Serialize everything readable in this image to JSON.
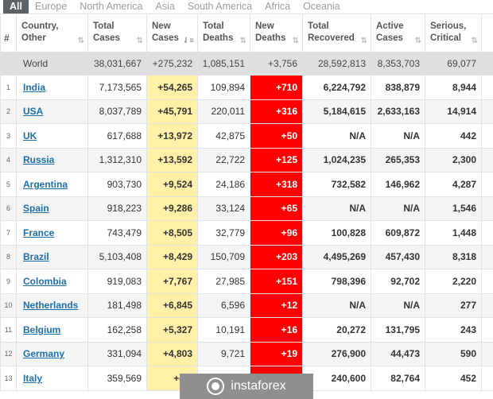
{
  "tabs": [
    "All",
    "Europe",
    "North America",
    "Asia",
    "South America",
    "Africa",
    "Oceania"
  ],
  "headers": {
    "num": "#",
    "country": [
      "Country,",
      "Other"
    ],
    "total_cases": [
      "Total",
      "Cases"
    ],
    "new_cases": [
      "New",
      "Cases"
    ],
    "total_deaths": [
      "Total",
      "Deaths"
    ],
    "new_deaths": [
      "New",
      "Deaths"
    ],
    "total_recovered": [
      "Total",
      "Recovered"
    ],
    "active_cases": [
      "Active",
      "Cases"
    ],
    "serious": [
      "Serious,",
      "Critical"
    ]
  },
  "world": {
    "country": "World",
    "total_cases": "38,031,667",
    "new_cases": "+275,232",
    "total_deaths": "1,085,151",
    "new_deaths": "+3,756",
    "total_recovered": "28,592,813",
    "active_cases": "8,353,703",
    "serious": "69,077"
  },
  "rows": [
    {
      "num": "1",
      "country": "India",
      "total_cases": "7,173,565",
      "new_cases": "+54,265",
      "total_deaths": "109,894",
      "new_deaths": "+710",
      "total_recovered": "6,224,792",
      "active_cases": "838,879",
      "serious": "8,944"
    },
    {
      "num": "2",
      "country": "USA",
      "total_cases": "8,037,789",
      "new_cases": "+45,791",
      "total_deaths": "220,011",
      "new_deaths": "+316",
      "total_recovered": "5,184,615",
      "active_cases": "2,633,163",
      "serious": "14,914"
    },
    {
      "num": "3",
      "country": "UK",
      "total_cases": "617,688",
      "new_cases": "+13,972",
      "total_deaths": "42,875",
      "new_deaths": "+50",
      "total_recovered": "N/A",
      "active_cases": "N/A",
      "serious": "442"
    },
    {
      "num": "4",
      "country": "Russia",
      "total_cases": "1,312,310",
      "new_cases": "+13,592",
      "total_deaths": "22,722",
      "new_deaths": "+125",
      "total_recovered": "1,024,235",
      "active_cases": "265,353",
      "serious": "2,300"
    },
    {
      "num": "5",
      "country": "Argentina",
      "total_cases": "903,730",
      "new_cases": "+9,524",
      "total_deaths": "24,186",
      "new_deaths": "+318",
      "total_recovered": "732,582",
      "active_cases": "146,962",
      "serious": "4,287"
    },
    {
      "num": "6",
      "country": "Spain",
      "total_cases": "918,223",
      "new_cases": "+9,286",
      "total_deaths": "33,124",
      "new_deaths": "+65",
      "total_recovered": "N/A",
      "active_cases": "N/A",
      "serious": "1,546"
    },
    {
      "num": "7",
      "country": "France",
      "total_cases": "743,479",
      "new_cases": "+8,505",
      "total_deaths": "32,779",
      "new_deaths": "+96",
      "total_recovered": "100,828",
      "active_cases": "609,872",
      "serious": "1,448"
    },
    {
      "num": "8",
      "country": "Brazil",
      "total_cases": "5,103,408",
      "new_cases": "+8,429",
      "total_deaths": "150,709",
      "new_deaths": "+203",
      "total_recovered": "4,495,269",
      "active_cases": "457,430",
      "serious": "8,318"
    },
    {
      "num": "9",
      "country": "Colombia",
      "total_cases": "919,083",
      "new_cases": "+7,767",
      "total_deaths": "27,985",
      "new_deaths": "+151",
      "total_recovered": "798,396",
      "active_cases": "92,702",
      "serious": "2,220"
    },
    {
      "num": "10",
      "country": "Netherlands",
      "total_cases": "181,498",
      "new_cases": "+6,845",
      "total_deaths": "6,596",
      "new_deaths": "+12",
      "total_recovered": "N/A",
      "active_cases": "N/A",
      "serious": "277"
    },
    {
      "num": "11",
      "country": "Belgium",
      "total_cases": "162,258",
      "new_cases": "+5,327",
      "total_deaths": "10,191",
      "new_deaths": "+16",
      "total_recovered": "20,272",
      "active_cases": "131,795",
      "serious": "243"
    },
    {
      "num": "12",
      "country": "Germany",
      "total_cases": "331,094",
      "new_cases": "+4,803",
      "total_deaths": "9,721",
      "new_deaths": "+19",
      "total_recovered": "276,900",
      "active_cases": "44,473",
      "serious": "590"
    },
    {
      "num": "13",
      "country": "Italy",
      "total_cases": "359,569",
      "new_cases": "+4,6",
      "total_deaths": "",
      "new_deaths": "",
      "total_recovered": "240,600",
      "active_cases": "82,764",
      "serious": "452"
    }
  ],
  "watermark": "instaforex",
  "colors": {
    "new_cases_bg": "#fff0a8",
    "new_deaths_bg": "#ff0000",
    "country_link": "#1e6fa8",
    "world_bg": "#dfdfdf"
  }
}
